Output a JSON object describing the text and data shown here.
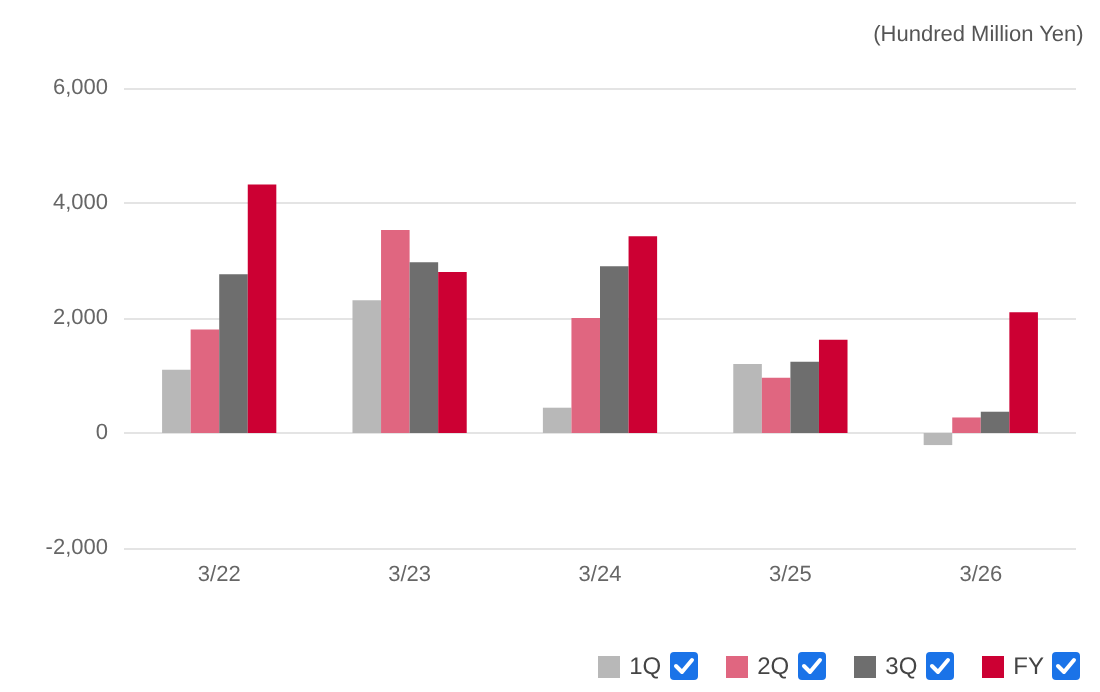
{
  "chart_data": {
    "type": "bar",
    "annotations": [
      "(Hundred Million Yen)"
    ],
    "categories": [
      "3/22",
      "3/23",
      "3/24",
      "3/25",
      "3/26"
    ],
    "series": [
      {
        "name": "1Q",
        "color": "#b8b8b8",
        "values": [
          1100,
          2310,
          440,
          1200,
          -210
        ]
      },
      {
        "name": "2Q",
        "color": "#e06680",
        "values": [
          1800,
          3530,
          2000,
          960,
          270
        ]
      },
      {
        "name": "3Q",
        "color": "#6e6e6e",
        "values": [
          2760,
          2970,
          2900,
          1240,
          370
        ]
      },
      {
        "name": "FY",
        "color": "#cc0033",
        "values": [
          4320,
          2800,
          3420,
          1620,
          2100
        ]
      }
    ],
    "ylim": [
      -2000,
      6000
    ],
    "yticks": [
      {
        "value": -2000,
        "label": "-2,000"
      },
      0,
      {
        "value": 2000,
        "label": "2,000"
      },
      {
        "value": 4000,
        "label": "4,000"
      },
      {
        "value": 6000,
        "label": "6,000"
      }
    ],
    "grid": "y",
    "legend": "bottom right"
  }
}
